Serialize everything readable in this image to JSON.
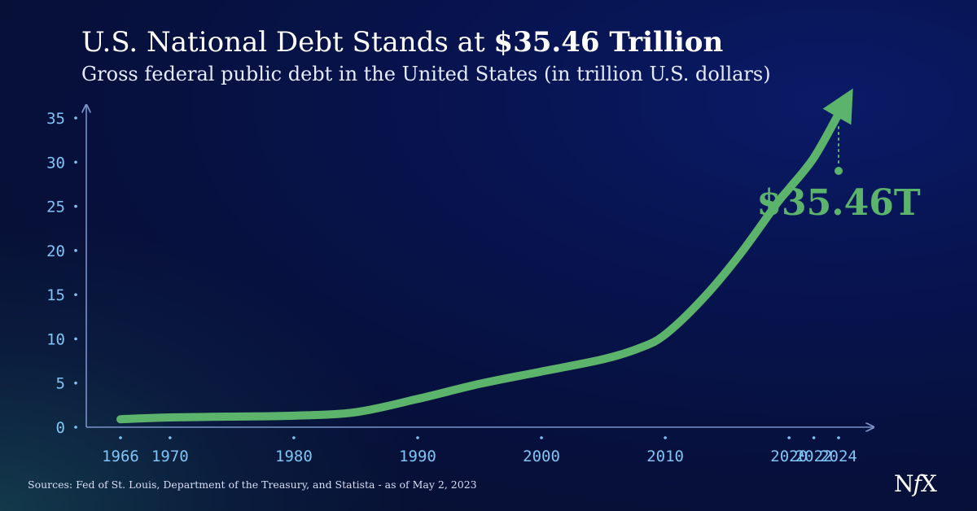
{
  "title_regular": "U.S. National Debt Stands at ",
  "title_bold": "$35.46 Trillion",
  "subtitle": "Gross federal public debt in the United States (in trillion U.S. dollars)",
  "source": "Sources: Fed of St. Louis, Department of the Treasury, and Statista - as of May 2, 2023",
  "logo": {
    "n": "N",
    "f": "f",
    "x": "X"
  },
  "colors": {
    "line": "#5cb36b",
    "axis": "#7a93c8",
    "tick_label": "#7fc4f5",
    "text": "#ffffff"
  },
  "chart_data": {
    "type": "line",
    "title": "U.S. National Debt Stands at $35.46 Trillion",
    "subtitle": "Gross federal public debt in the United States (in trillion U.S. dollars)",
    "xlabel": "",
    "ylabel": "",
    "x_ticks": [
      1966,
      1970,
      1980,
      1990,
      2000,
      2010,
      2020,
      2022,
      2024
    ],
    "y_ticks": [
      0,
      5,
      10,
      15,
      20,
      25,
      30,
      35
    ],
    "xlim": [
      1966,
      2024
    ],
    "ylim": [
      0,
      35
    ],
    "grid": false,
    "series": [
      {
        "x": [
          1966,
          1970,
          1975,
          1980,
          1985,
          1990,
          1995,
          2000,
          2005,
          2008,
          2010,
          2013,
          2016,
          2019,
          2020,
          2022,
          2024
        ],
        "y": [
          0.9,
          1.1,
          1.2,
          1.3,
          1.7,
          3.2,
          4.9,
          6.3,
          7.7,
          9.0,
          10.5,
          14.5,
          19.5,
          25.3,
          27.0,
          30.5,
          35.46
        ]
      }
    ],
    "annotation": {
      "label": "$35.46T",
      "x": 2024,
      "y": 35.46
    }
  }
}
